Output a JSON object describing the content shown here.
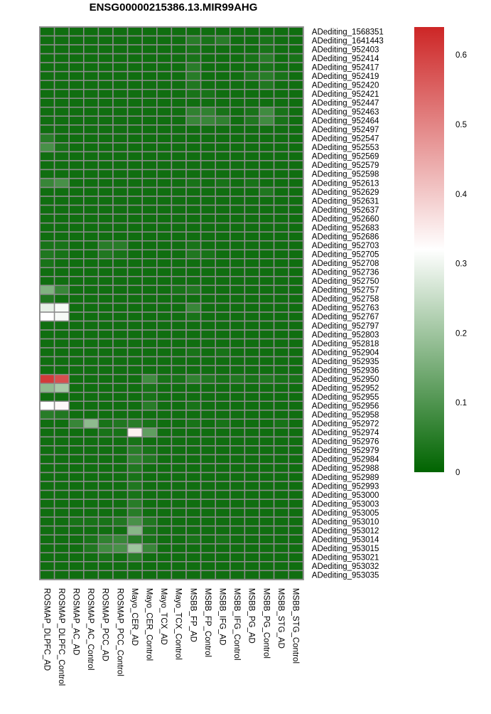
{
  "chart_data": {
    "type": "heatmap",
    "title": "ENSG00000215386.13.MIR99AHG",
    "columns": [
      "ROSMAP_DLPFC_AD",
      "ROSMAP_DLPFC_Control",
      "ROSMAP_AC_AD",
      "ROSMAP_AC_Control",
      "ROSMAP_PCC_AD",
      "ROSMAP_PCC_Control",
      "Mayo_CER_AD",
      "Mayo_CER_Control",
      "Mayo_TCX_AD",
      "Mayo_TCX_Control",
      "MSBB_FP_AD",
      "MSBB_FP_Control",
      "MSBB_IFG_AD",
      "MSBB_IFG_Control",
      "MSBB_PG_AD",
      "MSBB_PG_Control",
      "MSBB_STG_AD",
      "MSBB_STG_Control"
    ],
    "rows": [
      "ADediting_1568351",
      "ADediting_1641443",
      "ADediting_952403",
      "ADediting_952414",
      "ADediting_952417",
      "ADediting_952419",
      "ADediting_952420",
      "ADediting_952421",
      "ADediting_952447",
      "ADediting_952463",
      "ADediting_952464",
      "ADediting_952497",
      "ADediting_952547",
      "ADediting_952553",
      "ADediting_952569",
      "ADediting_952579",
      "ADediting_952598",
      "ADediting_952613",
      "ADediting_952629",
      "ADediting_952631",
      "ADediting_952637",
      "ADediting_952660",
      "ADediting_952683",
      "ADediting_952686",
      "ADediting_952703",
      "ADediting_952705",
      "ADediting_952708",
      "ADediting_952736",
      "ADediting_952750",
      "ADediting_952757",
      "ADediting_952758",
      "ADediting_952763",
      "ADediting_952767",
      "ADediting_952797",
      "ADediting_952803",
      "ADediting_952818",
      "ADediting_952904",
      "ADediting_952935",
      "ADediting_952936",
      "ADediting_952950",
      "ADediting_952952",
      "ADediting_952955",
      "ADediting_952956",
      "ADediting_952958",
      "ADediting_952972",
      "ADediting_952974",
      "ADediting_952976",
      "ADediting_952979",
      "ADediting_952984",
      "ADediting_952988",
      "ADediting_952989",
      "ADediting_952993",
      "ADediting_953000",
      "ADediting_953003",
      "ADediting_953005",
      "ADediting_953010",
      "ADediting_953012",
      "ADediting_953014",
      "ADediting_953015",
      "ADediting_953021",
      "ADediting_953032",
      "ADediting_953035"
    ],
    "values": [
      [
        0.02,
        0.02,
        0.02,
        0.02,
        0.02,
        0.02,
        0.02,
        0.02,
        0.02,
        0.02,
        0.02,
        0.02,
        0.02,
        0.02,
        0.02,
        0.02,
        0.02,
        0.02
      ],
      [
        0.02,
        0.02,
        0.02,
        0.02,
        0.02,
        0.02,
        0.02,
        0.02,
        0.02,
        0.02,
        0.05,
        0.03,
        0.05,
        0.02,
        0.02,
        0.03,
        0.02,
        0.02
      ],
      [
        0.02,
        0.02,
        0.02,
        0.02,
        0.02,
        0.02,
        0.02,
        0.02,
        0.02,
        0.02,
        0.03,
        0.02,
        0.02,
        0.02,
        0.02,
        0.03,
        0.02,
        0.02
      ],
      [
        0.02,
        0.02,
        0.02,
        0.02,
        0.02,
        0.02,
        0.02,
        0.02,
        0.02,
        0.02,
        0.03,
        0.02,
        0.02,
        0.02,
        0.03,
        0.05,
        0.02,
        0.03
      ],
      [
        0.02,
        0.02,
        0.02,
        0.02,
        0.02,
        0.02,
        0.02,
        0.02,
        0.02,
        0.02,
        0.05,
        0.02,
        0.02,
        0.02,
        0.02,
        0.03,
        0.02,
        0.02
      ],
      [
        0.02,
        0.02,
        0.02,
        0.02,
        0.02,
        0.02,
        0.02,
        0.02,
        0.02,
        0.02,
        0.05,
        0.02,
        0.02,
        0.02,
        0.04,
        0.05,
        0.03,
        0.02
      ],
      [
        0.02,
        0.02,
        0.02,
        0.02,
        0.02,
        0.02,
        0.02,
        0.02,
        0.02,
        0.02,
        0.04,
        0.02,
        0.02,
        0.02,
        0.02,
        0.04,
        0.02,
        0.02
      ],
      [
        0.02,
        0.02,
        0.02,
        0.02,
        0.02,
        0.02,
        0.02,
        0.02,
        0.02,
        0.02,
        0.03,
        0.03,
        0.02,
        0.02,
        0.02,
        0.02,
        0.02,
        0.02
      ],
      [
        0.02,
        0.02,
        0.02,
        0.02,
        0.02,
        0.02,
        0.02,
        0.02,
        0.02,
        0.02,
        0.02,
        0.02,
        0.02,
        0.02,
        0.02,
        0.02,
        0.02,
        0.02
      ],
      [
        0.02,
        0.02,
        0.02,
        0.02,
        0.02,
        0.02,
        0.02,
        0.02,
        0.02,
        0.02,
        0.06,
        0.06,
        0.03,
        0.02,
        0.03,
        0.08,
        0.03,
        0.02
      ],
      [
        0.02,
        0.02,
        0.02,
        0.02,
        0.02,
        0.02,
        0.02,
        0.02,
        0.02,
        0.02,
        0.07,
        0.07,
        0.06,
        0.02,
        0.04,
        0.08,
        0.03,
        0.02
      ],
      [
        0.02,
        0.02,
        0.02,
        0.02,
        0.02,
        0.02,
        0.02,
        0.02,
        0.02,
        0.02,
        0.02,
        0.02,
        0.02,
        0.02,
        0.02,
        0.02,
        0.02,
        0.02
      ],
      [
        0.05,
        0.02,
        0.02,
        0.02,
        0.02,
        0.02,
        0.02,
        0.02,
        0.02,
        0.02,
        0.02,
        0.02,
        0.02,
        0.02,
        0.02,
        0.02,
        0.02,
        0.02
      ],
      [
        0.09,
        0.03,
        0.02,
        0.02,
        0.02,
        0.02,
        0.02,
        0.02,
        0.02,
        0.02,
        0.02,
        0.02,
        0.02,
        0.02,
        0.02,
        0.02,
        0.02,
        0.02
      ],
      [
        0.02,
        0.02,
        0.02,
        0.02,
        0.02,
        0.02,
        0.02,
        0.02,
        0.02,
        0.02,
        0.02,
        0.02,
        0.02,
        0.02,
        0.02,
        0.02,
        0.02,
        0.02
      ],
      [
        0.02,
        0.02,
        0.02,
        0.02,
        0.02,
        0.02,
        0.02,
        0.02,
        0.02,
        0.02,
        0.02,
        0.02,
        0.02,
        0.02,
        0.02,
        0.02,
        0.02,
        0.02
      ],
      [
        0.02,
        0.02,
        0.02,
        0.02,
        0.02,
        0.02,
        0.02,
        0.02,
        0.02,
        0.02,
        0.02,
        0.02,
        0.02,
        0.02,
        0.02,
        0.02,
        0.02,
        0.02
      ],
      [
        0.07,
        0.09,
        0.02,
        0.02,
        0.02,
        0.02,
        0.02,
        0.02,
        0.02,
        0.02,
        0.03,
        0.02,
        0.03,
        0.02,
        0.03,
        0.02,
        0.02,
        0.02
      ],
      [
        0.02,
        0.02,
        0.02,
        0.02,
        0.02,
        0.02,
        0.02,
        0.02,
        0.02,
        0.02,
        0.02,
        0.02,
        0.02,
        0.02,
        0.02,
        0.04,
        0.02,
        0.02
      ],
      [
        0.02,
        0.02,
        0.02,
        0.02,
        0.02,
        0.02,
        0.02,
        0.02,
        0.02,
        0.02,
        0.02,
        0.02,
        0.02,
        0.02,
        0.02,
        0.02,
        0.02,
        0.02
      ],
      [
        0.02,
        0.02,
        0.02,
        0.02,
        0.02,
        0.02,
        0.02,
        0.02,
        0.02,
        0.02,
        0.02,
        0.02,
        0.02,
        0.02,
        0.02,
        0.02,
        0.02,
        0.02
      ],
      [
        0.02,
        0.02,
        0.02,
        0.02,
        0.02,
        0.02,
        0.02,
        0.02,
        0.02,
        0.02,
        0.02,
        0.02,
        0.02,
        0.02,
        0.02,
        0.02,
        0.02,
        0.02
      ],
      [
        0.02,
        0.02,
        0.02,
        0.02,
        0.02,
        0.02,
        0.02,
        0.02,
        0.02,
        0.02,
        0.02,
        0.02,
        0.02,
        0.02,
        0.02,
        0.02,
        0.02,
        0.02
      ],
      [
        0.02,
        0.02,
        0.02,
        0.02,
        0.02,
        0.02,
        0.02,
        0.02,
        0.02,
        0.02,
        0.02,
        0.02,
        0.02,
        0.02,
        0.02,
        0.02,
        0.02,
        0.02
      ],
      [
        0.03,
        0.03,
        0.02,
        0.02,
        0.05,
        0.05,
        0.02,
        0.02,
        0.02,
        0.02,
        0.03,
        0.02,
        0.02,
        0.02,
        0.02,
        0.02,
        0.02,
        0.02
      ],
      [
        0.04,
        0.03,
        0.02,
        0.02,
        0.04,
        0.03,
        0.02,
        0.02,
        0.02,
        0.02,
        0.04,
        0.03,
        0.02,
        0.02,
        0.02,
        0.02,
        0.02,
        0.02
      ],
      [
        0.03,
        0.02,
        0.02,
        0.02,
        0.02,
        0.02,
        0.02,
        0.02,
        0.02,
        0.02,
        0.02,
        0.02,
        0.02,
        0.02,
        0.02,
        0.02,
        0.02,
        0.02
      ],
      [
        0.02,
        0.02,
        0.02,
        0.02,
        0.02,
        0.02,
        0.02,
        0.02,
        0.02,
        0.02,
        0.02,
        0.02,
        0.02,
        0.02,
        0.02,
        0.02,
        0.02,
        0.02
      ],
      [
        0.02,
        0.02,
        0.02,
        0.02,
        0.02,
        0.02,
        0.02,
        0.02,
        0.02,
        0.02,
        0.02,
        0.02,
        0.02,
        0.02,
        0.02,
        0.02,
        0.02,
        0.02
      ],
      [
        0.16,
        0.07,
        0.02,
        0.02,
        0.02,
        0.02,
        0.02,
        0.02,
        0.02,
        0.03,
        0.04,
        0.02,
        0.02,
        0.02,
        0.02,
        0.02,
        0.02,
        0.02
      ],
      [
        0.04,
        0.02,
        0.02,
        0.02,
        0.02,
        0.02,
        0.02,
        0.02,
        0.02,
        0.02,
        0.02,
        0.02,
        0.02,
        0.02,
        0.02,
        0.02,
        0.02,
        0.02
      ],
      [
        0.29,
        0.31,
        0.02,
        0.02,
        0.02,
        0.02,
        0.02,
        0.02,
        0.02,
        0.02,
        0.07,
        0.02,
        0.02,
        0.02,
        0.02,
        0.02,
        0.02,
        0.02
      ],
      [
        0.32,
        0.31,
        0.02,
        0.02,
        0.02,
        0.02,
        0.02,
        0.02,
        0.02,
        0.02,
        0.03,
        0.02,
        0.02,
        0.02,
        0.02,
        0.02,
        0.02,
        0.02
      ],
      [
        0.02,
        0.02,
        0.02,
        0.02,
        0.02,
        0.02,
        0.02,
        0.02,
        0.02,
        0.02,
        0.02,
        0.02,
        0.02,
        0.02,
        0.02,
        0.02,
        0.02,
        0.02
      ],
      [
        0.02,
        0.02,
        0.02,
        0.02,
        0.02,
        0.02,
        0.02,
        0.02,
        0.02,
        0.02,
        0.02,
        0.02,
        0.02,
        0.02,
        0.02,
        0.02,
        0.02,
        0.02
      ],
      [
        0.02,
        0.02,
        0.02,
        0.02,
        0.02,
        0.02,
        0.02,
        0.02,
        0.02,
        0.02,
        0.02,
        0.02,
        0.02,
        0.02,
        0.02,
        0.02,
        0.02,
        0.02
      ],
      [
        0.02,
        0.02,
        0.02,
        0.02,
        0.02,
        0.02,
        0.02,
        0.02,
        0.02,
        0.02,
        0.03,
        0.02,
        0.03,
        0.02,
        0.02,
        0.02,
        0.02,
        0.02
      ],
      [
        0.02,
        0.02,
        0.02,
        0.02,
        0.02,
        0.02,
        0.02,
        0.02,
        0.02,
        0.02,
        0.02,
        0.02,
        0.02,
        0.02,
        0.02,
        0.02,
        0.02,
        0.02
      ],
      [
        0.02,
        0.02,
        0.02,
        0.02,
        0.02,
        0.02,
        0.02,
        0.02,
        0.02,
        0.02,
        0.02,
        0.02,
        0.02,
        0.02,
        0.02,
        0.02,
        0.02,
        0.02
      ],
      [
        0.61,
        0.58,
        0.02,
        0.02,
        0.02,
        0.02,
        0.02,
        0.08,
        0.03,
        0.03,
        0.06,
        0.04,
        0.03,
        0.04,
        0.03,
        0.04,
        0.03,
        0.03
      ],
      [
        0.18,
        0.21,
        0.02,
        0.02,
        0.02,
        0.02,
        0.02,
        0.03,
        0.02,
        0.02,
        0.02,
        0.02,
        0.02,
        0.02,
        0.02,
        0.02,
        0.02,
        0.02
      ],
      [
        0.02,
        0.02,
        0.02,
        0.02,
        0.02,
        0.02,
        0.02,
        0.03,
        0.02,
        0.02,
        0.02,
        0.02,
        0.02,
        0.02,
        0.02,
        0.02,
        0.02,
        0.02
      ],
      [
        0.32,
        0.33,
        0.02,
        0.02,
        0.02,
        0.02,
        0.02,
        0.05,
        0.02,
        0.02,
        0.03,
        0.02,
        0.02,
        0.02,
        0.02,
        0.02,
        0.02,
        0.02
      ],
      [
        0.05,
        0.04,
        0.02,
        0.02,
        0.02,
        0.02,
        0.02,
        0.02,
        0.02,
        0.02,
        0.02,
        0.02,
        0.02,
        0.02,
        0.02,
        0.02,
        0.02,
        0.02
      ],
      [
        0.02,
        0.02,
        0.07,
        0.18,
        0.03,
        0.04,
        0.05,
        0.03,
        0.02,
        0.02,
        0.03,
        0.02,
        0.03,
        0.02,
        0.02,
        0.02,
        0.03,
        0.02
      ],
      [
        0.02,
        0.02,
        0.02,
        0.02,
        0.03,
        0.03,
        0.34,
        0.12,
        0.02,
        0.02,
        0.02,
        0.02,
        0.02,
        0.02,
        0.02,
        0.02,
        0.02,
        0.02
      ],
      [
        0.02,
        0.02,
        0.02,
        0.02,
        0.02,
        0.02,
        0.03,
        0.02,
        0.02,
        0.02,
        0.02,
        0.02,
        0.02,
        0.02,
        0.02,
        0.02,
        0.02,
        0.02
      ],
      [
        0.02,
        0.02,
        0.02,
        0.02,
        0.02,
        0.02,
        0.05,
        0.03,
        0.02,
        0.02,
        0.02,
        0.02,
        0.02,
        0.02,
        0.02,
        0.02,
        0.02,
        0.02
      ],
      [
        0.02,
        0.02,
        0.02,
        0.02,
        0.02,
        0.02,
        0.06,
        0.04,
        0.02,
        0.02,
        0.02,
        0.02,
        0.02,
        0.02,
        0.02,
        0.02,
        0.02,
        0.02
      ],
      [
        0.02,
        0.02,
        0.02,
        0.02,
        0.02,
        0.02,
        0.04,
        0.02,
        0.02,
        0.02,
        0.02,
        0.02,
        0.02,
        0.02,
        0.02,
        0.02,
        0.02,
        0.02
      ],
      [
        0.02,
        0.02,
        0.02,
        0.02,
        0.02,
        0.02,
        0.03,
        0.02,
        0.02,
        0.02,
        0.02,
        0.02,
        0.02,
        0.02,
        0.02,
        0.02,
        0.02,
        0.02
      ],
      [
        0.02,
        0.02,
        0.02,
        0.02,
        0.02,
        0.02,
        0.04,
        0.02,
        0.02,
        0.02,
        0.02,
        0.02,
        0.02,
        0.02,
        0.02,
        0.02,
        0.02,
        0.02
      ],
      [
        0.02,
        0.02,
        0.02,
        0.02,
        0.02,
        0.02,
        0.03,
        0.02,
        0.02,
        0.02,
        0.02,
        0.02,
        0.02,
        0.02,
        0.02,
        0.02,
        0.02,
        0.02
      ],
      [
        0.02,
        0.02,
        0.02,
        0.02,
        0.02,
        0.02,
        0.05,
        0.02,
        0.02,
        0.02,
        0.02,
        0.02,
        0.02,
        0.02,
        0.02,
        0.02,
        0.02,
        0.02
      ],
      [
        0.02,
        0.02,
        0.02,
        0.02,
        0.02,
        0.02,
        0.05,
        0.02,
        0.02,
        0.02,
        0.02,
        0.02,
        0.02,
        0.02,
        0.02,
        0.02,
        0.02,
        0.02
      ],
      [
        0.02,
        0.02,
        0.03,
        0.03,
        0.03,
        0.04,
        0.09,
        0.04,
        0.02,
        0.02,
        0.02,
        0.02,
        0.02,
        0.02,
        0.02,
        0.02,
        0.02,
        0.02
      ],
      [
        0.02,
        0.02,
        0.02,
        0.02,
        0.02,
        0.02,
        0.17,
        0.03,
        0.02,
        0.02,
        0.02,
        0.02,
        0.02,
        0.02,
        0.02,
        0.02,
        0.02,
        0.02
      ],
      [
        0.02,
        0.02,
        0.02,
        0.03,
        0.06,
        0.07,
        0.05,
        0.03,
        0.02,
        0.02,
        0.03,
        0.02,
        0.03,
        0.02,
        0.02,
        0.02,
        0.02,
        0.02
      ],
      [
        0.02,
        0.02,
        0.02,
        0.04,
        0.08,
        0.09,
        0.2,
        0.07,
        0.02,
        0.02,
        0.02,
        0.02,
        0.02,
        0.02,
        0.02,
        0.02,
        0.02,
        0.02
      ],
      [
        0.02,
        0.02,
        0.02,
        0.02,
        0.03,
        0.02,
        0.05,
        0.02,
        0.02,
        0.02,
        0.02,
        0.02,
        0.02,
        0.02,
        0.02,
        0.02,
        0.02,
        0.02
      ],
      [
        0.02,
        0.02,
        0.02,
        0.02,
        0.02,
        0.02,
        0.02,
        0.02,
        0.02,
        0.02,
        0.02,
        0.02,
        0.02,
        0.02,
        0.02,
        0.02,
        0.02,
        0.02
      ],
      [
        0.02,
        0.02,
        0.02,
        0.02,
        0.02,
        0.02,
        0.02,
        0.02,
        0.02,
        0.02,
        0.02,
        0.02,
        0.02,
        0.02,
        0.02,
        0.02,
        0.02,
        0.02
      ]
    ],
    "colorscale": {
      "min": 0,
      "mid": 0.32,
      "max": 0.64,
      "low_color": "#006400",
      "mid_color": "#ffffff",
      "high_color": "#cd2626"
    },
    "legend": {
      "placement": "right",
      "ticks": [
        0,
        0.1,
        0.2,
        0.3,
        0.4,
        0.5,
        0.6
      ],
      "tick_labels": [
        "0",
        "0.1",
        "0.2",
        "0.3",
        "0.4",
        "0.5",
        "0.6"
      ]
    },
    "cell_border_color": "#8c8c8c"
  }
}
